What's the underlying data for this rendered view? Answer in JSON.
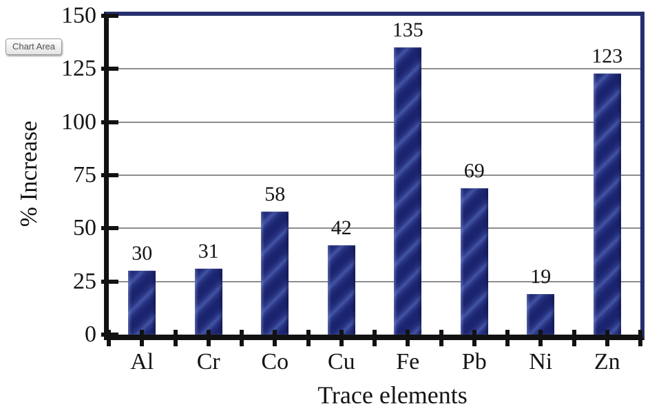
{
  "tooltip": {
    "label": "Chart Area"
  },
  "chart_data": {
    "type": "bar",
    "title": "",
    "categories": [
      "Al",
      "Cr",
      "Co",
      "Cu",
      "Fe",
      "Pb",
      "Ni",
      "Zn"
    ],
    "values": [
      30,
      31,
      58,
      42,
      135,
      69,
      19,
      123
    ],
    "value_labels_shown": true,
    "xlabel": "Trace elements",
    "ylabel": "% Increase",
    "ylim": [
      0,
      150
    ],
    "yticks": [
      0,
      25,
      50,
      75,
      100,
      125,
      150
    ],
    "grid": "horizontal",
    "legend_position": "none",
    "colors": {
      "bar_dark": "#1b246f",
      "bar_mid": "#283382",
      "bar_light": "#4254a4",
      "gridline": "#8c8c8c",
      "frame_navy": "#252f6e",
      "axis_black": "#121212",
      "text": "#141414"
    }
  }
}
